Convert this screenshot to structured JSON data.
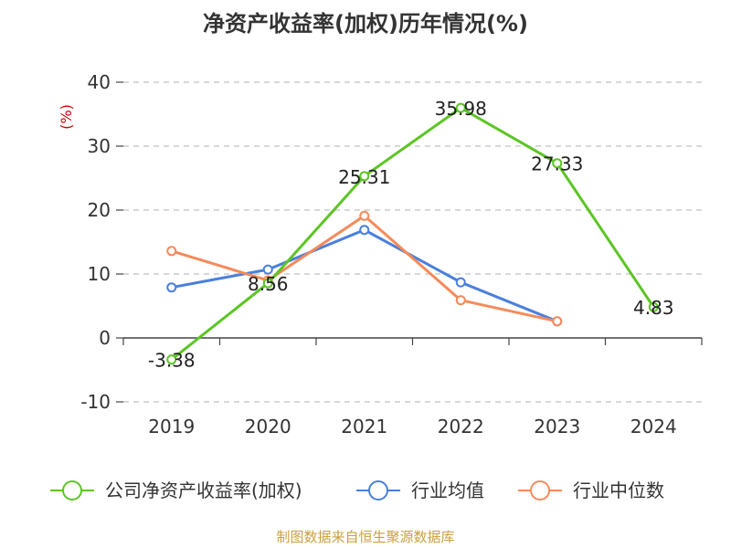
{
  "chart_data": {
    "type": "line",
    "title": "净资产收益率(加权)历年情况(%)",
    "ylabel": "(%)",
    "categories": [
      "2019",
      "2020",
      "2021",
      "2022",
      "2023",
      "2024"
    ],
    "ylim": [
      -10,
      40
    ],
    "yticks": [
      -10,
      0,
      10,
      20,
      30,
      40
    ],
    "grid": true,
    "legend_position": "bottom",
    "series": [
      {
        "name": "公司净资产收益率(加权)",
        "color": "#5cc524",
        "values": [
          -3.38,
          8.56,
          25.31,
          35.98,
          27.33,
          4.83
        ],
        "labels": [
          "-3.38",
          "8.56",
          "25.31",
          "35.98",
          "27.33",
          "4.83"
        ]
      },
      {
        "name": "行业均值",
        "color": "#4a7fdc",
        "values": [
          7.9,
          10.7,
          16.9,
          8.7,
          2.6,
          null
        ]
      },
      {
        "name": "行业中位数",
        "color": "#f58a5a",
        "values": [
          13.6,
          9.0,
          19.1,
          5.9,
          2.6,
          null
        ]
      }
    ]
  },
  "footer": {
    "source": "制图数据来自恒生聚源数据库"
  }
}
